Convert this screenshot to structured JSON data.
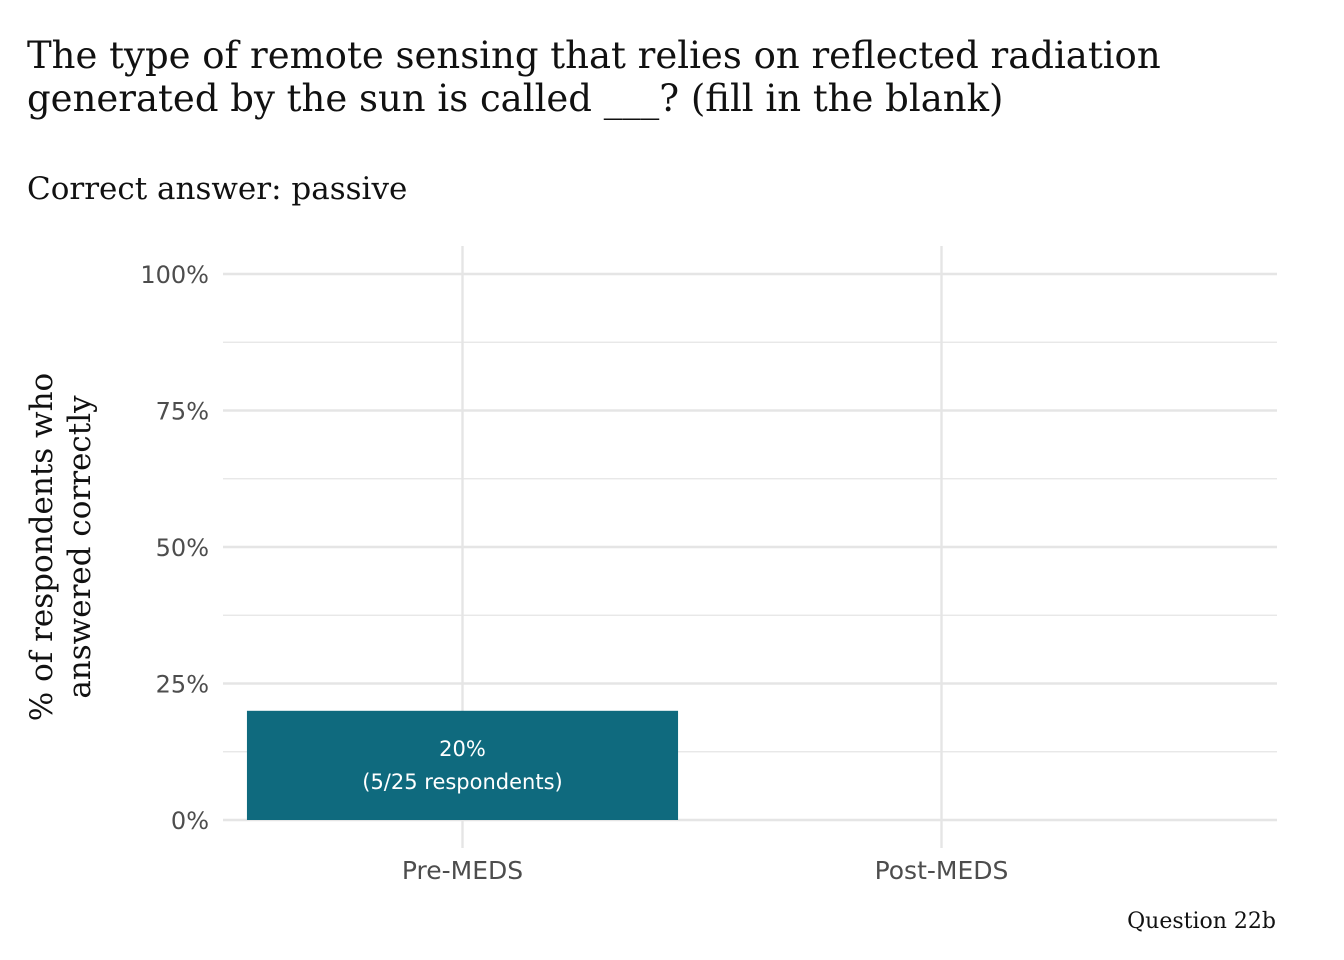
{
  "chart_data": {
    "type": "bar",
    "title": "The type of remote sensing that relies on reflected radiation generated by the sun is called ___? (fill in the blank)",
    "title_lines": [
      "The type of remote sensing that relies on reflected radiation",
      "generated by the sun is called ___? (fill in the blank)"
    ],
    "subtitle": "Correct answer: passive",
    "ylabel": "% of respondents who answered correctly",
    "ylabel_lines": [
      "% of respondents who",
      "answered correctly"
    ],
    "xlabel": "",
    "caption": "Question 22b",
    "categories": [
      "Pre-MEDS",
      "Post-MEDS"
    ],
    "values": [
      20,
      null
    ],
    "data_labels": [
      [
        "20%",
        "(5/25 respondents)"
      ],
      null
    ],
    "ylim": [
      0,
      100
    ],
    "yticks": [
      0,
      25,
      50,
      75,
      100
    ],
    "ytick_labels": [
      "0%",
      "25%",
      "50%",
      "75%",
      "100%"
    ],
    "grid": true,
    "legend": "none",
    "colors": {
      "bar": "#0f6a7e",
      "grid": "#e5e5e5",
      "tick_text": "#4d4d4d",
      "text": "#111111",
      "label_text": "#ffffff"
    }
  }
}
